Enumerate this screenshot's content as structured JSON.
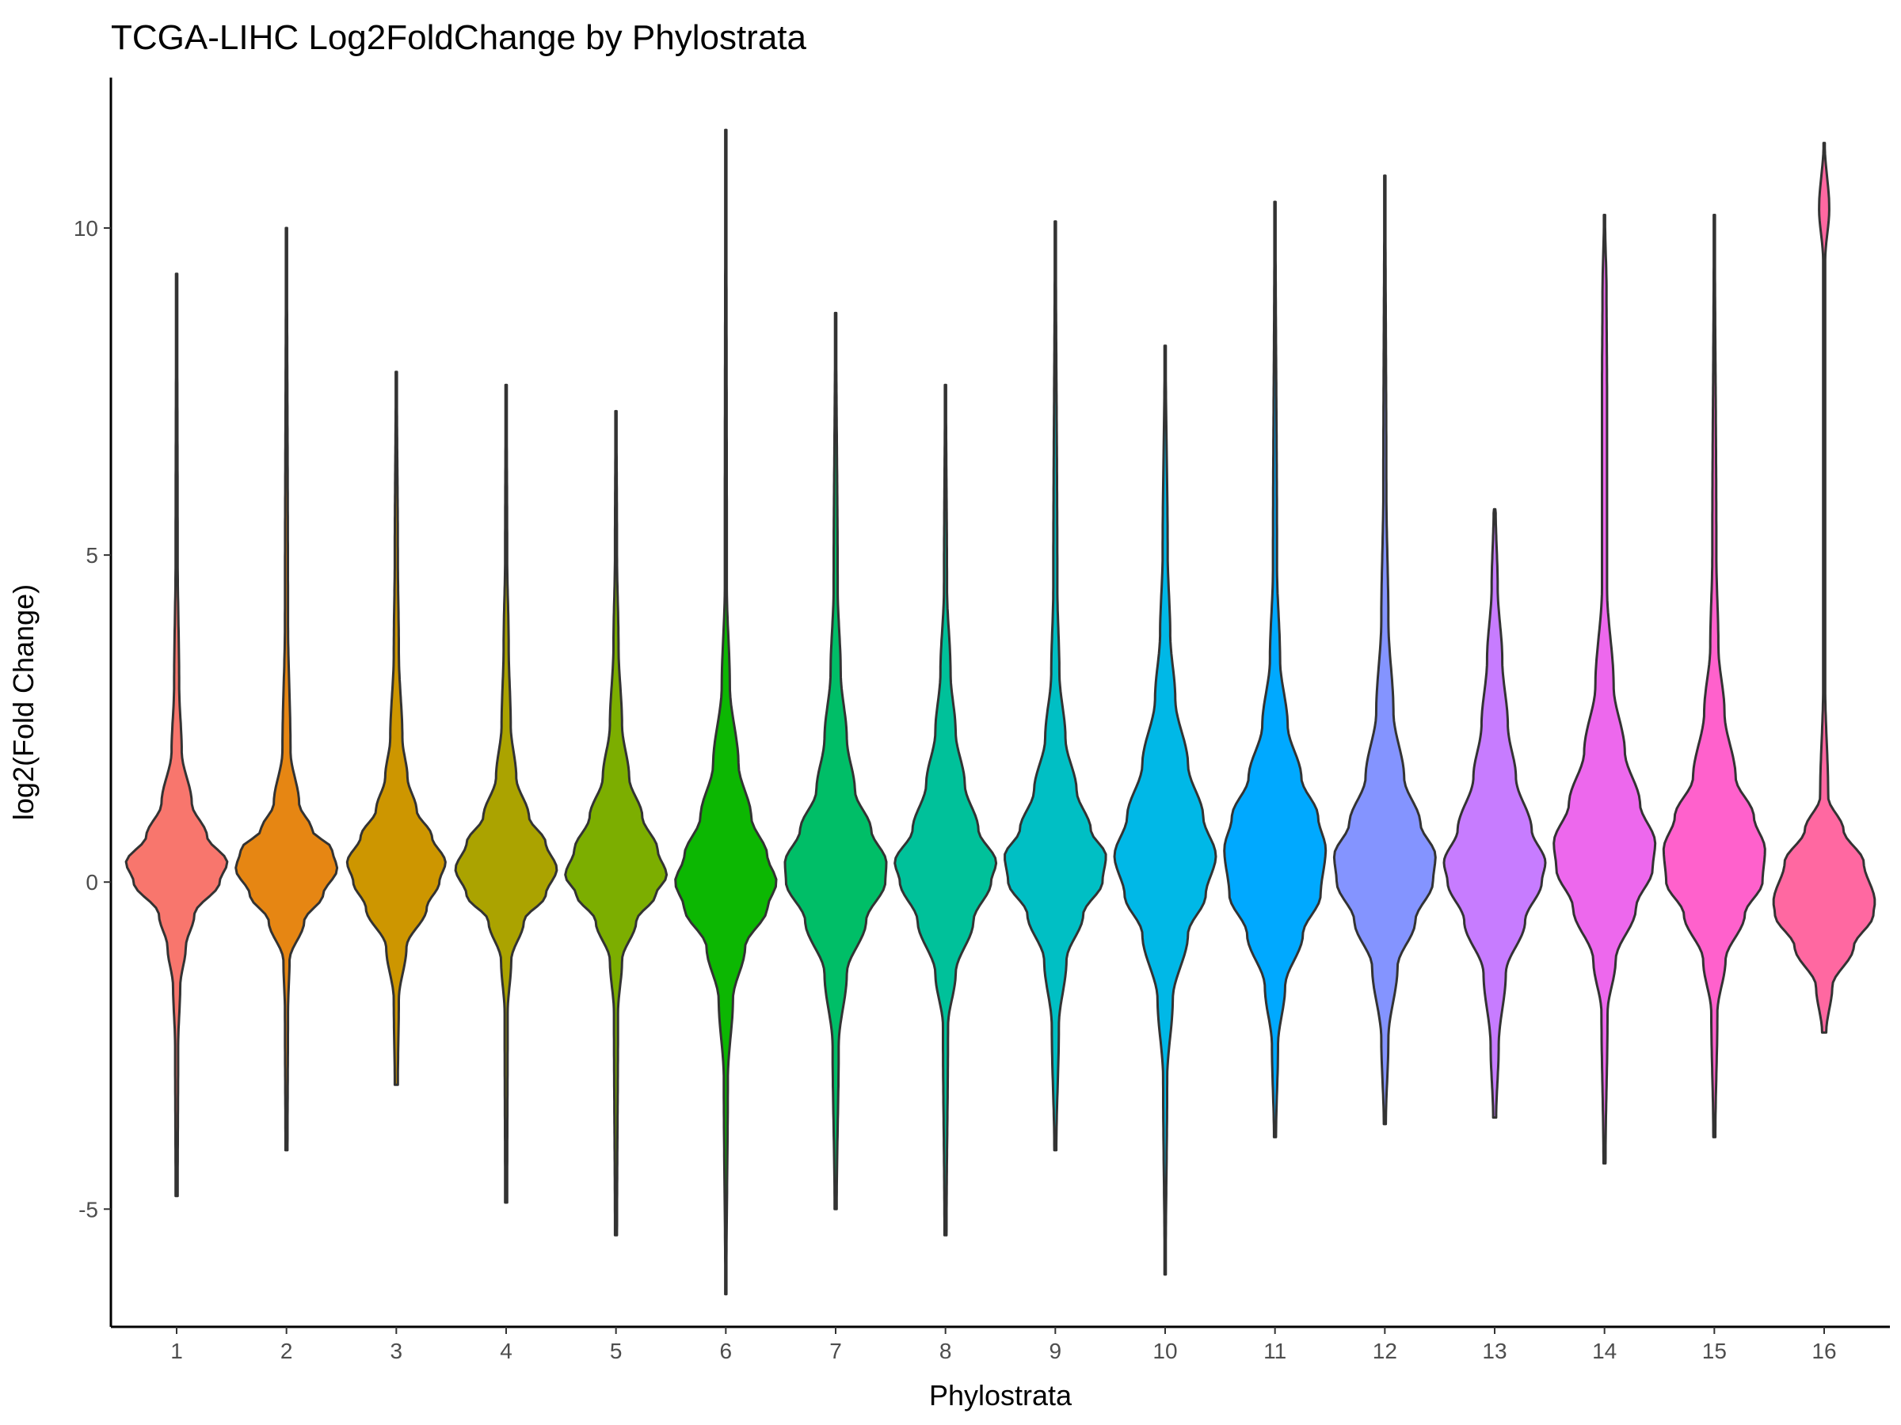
{
  "chart_data": {
    "type": "violin",
    "title": "TCGA-LIHC Log2FoldChange by Phylostrata",
    "xlabel": "Phylostrata",
    "ylabel": "log2(Fold Change)",
    "ylim": [
      -6.8,
      12.3
    ],
    "y_ticks": [
      -5,
      0,
      5,
      10
    ],
    "grid": false,
    "legend": "none",
    "categories": [
      "1",
      "2",
      "3",
      "4",
      "5",
      "6",
      "7",
      "8",
      "9",
      "10",
      "11",
      "12",
      "13",
      "14",
      "15",
      "16"
    ],
    "series": [
      {
        "category": "1",
        "color": "#F8766D",
        "min": -4.8,
        "max": 9.3,
        "profile": [
          [
            -4.8,
            0.02
          ],
          [
            -2.5,
            0.03
          ],
          [
            -1.6,
            0.07
          ],
          [
            -1.0,
            0.18
          ],
          [
            -0.5,
            0.35
          ],
          [
            0.0,
            0.85
          ],
          [
            0.3,
            1.0
          ],
          [
            0.7,
            0.6
          ],
          [
            1.2,
            0.3
          ],
          [
            2.0,
            0.1
          ],
          [
            3.0,
            0.05
          ],
          [
            5.0,
            0.02
          ],
          [
            9.3,
            0.01
          ]
        ]
      },
      {
        "category": "2",
        "color": "#E68613",
        "min": -4.1,
        "max": 10.0,
        "profile": [
          [
            -4.1,
            0.02
          ],
          [
            -2.0,
            0.03
          ],
          [
            -1.2,
            0.06
          ],
          [
            -0.6,
            0.35
          ],
          [
            -0.2,
            0.72
          ],
          [
            0.2,
            1.0
          ],
          [
            0.5,
            0.9
          ],
          [
            0.8,
            0.5
          ],
          [
            1.2,
            0.25
          ],
          [
            2.0,
            0.08
          ],
          [
            4.0,
            0.03
          ],
          [
            10.0,
            0.01
          ]
        ]
      },
      {
        "category": "3",
        "color": "#CD9600",
        "min": -3.1,
        "max": 7.8,
        "profile": [
          [
            -3.1,
            0.03
          ],
          [
            -1.8,
            0.05
          ],
          [
            -1.0,
            0.2
          ],
          [
            -0.4,
            0.6
          ],
          [
            0.0,
            0.85
          ],
          [
            0.3,
            0.97
          ],
          [
            0.7,
            0.7
          ],
          [
            1.1,
            0.4
          ],
          [
            1.6,
            0.22
          ],
          [
            2.2,
            0.12
          ],
          [
            3.5,
            0.05
          ],
          [
            5.0,
            0.03
          ],
          [
            7.8,
            0.01
          ]
        ]
      },
      {
        "category": "4",
        "color": "#ABA300",
        "min": -4.9,
        "max": 7.6,
        "profile": [
          [
            -4.9,
            0.02
          ],
          [
            -2.0,
            0.03
          ],
          [
            -1.2,
            0.1
          ],
          [
            -0.6,
            0.35
          ],
          [
            -0.2,
            0.78
          ],
          [
            0.2,
            1.0
          ],
          [
            0.6,
            0.78
          ],
          [
            1.0,
            0.45
          ],
          [
            1.6,
            0.2
          ],
          [
            2.4,
            0.09
          ],
          [
            3.6,
            0.05
          ],
          [
            5.0,
            0.02
          ],
          [
            7.6,
            0.01
          ]
        ]
      },
      {
        "category": "5",
        "color": "#7CAE00",
        "min": -5.4,
        "max": 7.2,
        "profile": [
          [
            -5.4,
            0.02
          ],
          [
            -2.0,
            0.04
          ],
          [
            -1.2,
            0.12
          ],
          [
            -0.6,
            0.4
          ],
          [
            -0.2,
            0.78
          ],
          [
            0.1,
            1.0
          ],
          [
            0.5,
            0.82
          ],
          [
            1.0,
            0.52
          ],
          [
            1.6,
            0.26
          ],
          [
            2.4,
            0.12
          ],
          [
            3.6,
            0.05
          ],
          [
            5.0,
            0.02
          ],
          [
            7.2,
            0.01
          ]
        ]
      },
      {
        "category": "6",
        "color": "#0CB702",
        "min": -6.3,
        "max": 11.5,
        "profile": [
          [
            -6.3,
            0.01
          ],
          [
            -3.0,
            0.04
          ],
          [
            -1.8,
            0.14
          ],
          [
            -1.0,
            0.38
          ],
          [
            -0.4,
            0.82
          ],
          [
            0.0,
            1.0
          ],
          [
            0.4,
            0.82
          ],
          [
            1.0,
            0.5
          ],
          [
            1.8,
            0.25
          ],
          [
            3.0,
            0.08
          ],
          [
            4.5,
            0.02
          ],
          [
            11.5,
            0.01
          ]
        ]
      },
      {
        "category": "7",
        "color": "#00BE67",
        "min": -5.0,
        "max": 8.7,
        "profile": [
          [
            -5.0,
            0.02
          ],
          [
            -2.5,
            0.06
          ],
          [
            -1.4,
            0.22
          ],
          [
            -0.6,
            0.6
          ],
          [
            0.0,
            0.98
          ],
          [
            0.3,
            1.0
          ],
          [
            0.8,
            0.7
          ],
          [
            1.4,
            0.38
          ],
          [
            2.2,
            0.22
          ],
          [
            3.2,
            0.1
          ],
          [
            4.5,
            0.04
          ],
          [
            8.7,
            0.01
          ]
        ]
      },
      {
        "category": "8",
        "color": "#00C19A",
        "min": -5.4,
        "max": 7.6,
        "profile": [
          [
            -5.4,
            0.02
          ],
          [
            -2.2,
            0.05
          ],
          [
            -1.4,
            0.2
          ],
          [
            -0.6,
            0.55
          ],
          [
            0.0,
            0.9
          ],
          [
            0.3,
            1.0
          ],
          [
            0.8,
            0.65
          ],
          [
            1.5,
            0.38
          ],
          [
            2.3,
            0.2
          ],
          [
            3.2,
            0.1
          ],
          [
            4.5,
            0.03
          ],
          [
            7.6,
            0.01
          ]
        ]
      },
      {
        "category": "9",
        "color": "#00BFC4",
        "min": -4.1,
        "max": 10.1,
        "profile": [
          [
            -4.1,
            0.02
          ],
          [
            -2.2,
            0.07
          ],
          [
            -1.2,
            0.22
          ],
          [
            -0.5,
            0.55
          ],
          [
            0.0,
            0.93
          ],
          [
            0.4,
            1.0
          ],
          [
            0.8,
            0.7
          ],
          [
            1.4,
            0.42
          ],
          [
            2.2,
            0.2
          ],
          [
            3.2,
            0.08
          ],
          [
            4.5,
            0.04
          ],
          [
            10.1,
            0.01
          ]
        ]
      },
      {
        "category": "10",
        "color": "#00B8E7",
        "min": -6.0,
        "max": 8.2,
        "profile": [
          [
            -6.0,
            0.01
          ],
          [
            -3.0,
            0.04
          ],
          [
            -1.8,
            0.15
          ],
          [
            -0.8,
            0.45
          ],
          [
            -0.2,
            0.8
          ],
          [
            0.4,
            1.0
          ],
          [
            1.0,
            0.75
          ],
          [
            1.8,
            0.45
          ],
          [
            2.8,
            0.2
          ],
          [
            3.8,
            0.1
          ],
          [
            5.0,
            0.05
          ],
          [
            8.2,
            0.01
          ]
        ]
      },
      {
        "category": "11",
        "color": "#00A9FF",
        "min": -3.9,
        "max": 10.4,
        "profile": [
          [
            -3.9,
            0.02
          ],
          [
            -2.5,
            0.06
          ],
          [
            -1.6,
            0.2
          ],
          [
            -0.8,
            0.55
          ],
          [
            -0.2,
            0.9
          ],
          [
            0.5,
            1.0
          ],
          [
            1.0,
            0.85
          ],
          [
            1.6,
            0.52
          ],
          [
            2.4,
            0.25
          ],
          [
            3.4,
            0.1
          ],
          [
            4.8,
            0.04
          ],
          [
            10.4,
            0.01
          ]
        ]
      },
      {
        "category": "12",
        "color": "#8494FF",
        "min": -3.7,
        "max": 10.8,
        "profile": [
          [
            -3.7,
            0.02
          ],
          [
            -2.4,
            0.07
          ],
          [
            -1.3,
            0.25
          ],
          [
            -0.6,
            0.6
          ],
          [
            0.0,
            0.95
          ],
          [
            0.4,
            1.0
          ],
          [
            0.9,
            0.7
          ],
          [
            1.6,
            0.38
          ],
          [
            2.6,
            0.17
          ],
          [
            4.0,
            0.07
          ],
          [
            6.0,
            0.03
          ],
          [
            10.8,
            0.01
          ]
        ]
      },
      {
        "category": "13",
        "color": "#C77CFF",
        "min": -3.6,
        "max": 5.7,
        "profile": [
          [
            -3.6,
            0.03
          ],
          [
            -2.5,
            0.08
          ],
          [
            -1.4,
            0.22
          ],
          [
            -0.6,
            0.6
          ],
          [
            0.0,
            0.93
          ],
          [
            0.3,
            1.0
          ],
          [
            0.8,
            0.73
          ],
          [
            1.6,
            0.42
          ],
          [
            2.4,
            0.26
          ],
          [
            3.4,
            0.15
          ],
          [
            4.5,
            0.06
          ],
          [
            5.7,
            0.02
          ]
        ]
      },
      {
        "category": "14",
        "color": "#ED68ED",
        "min": -4.3,
        "max": 10.2,
        "profile": [
          [
            -4.3,
            0.02
          ],
          [
            -2.0,
            0.06
          ],
          [
            -1.2,
            0.22
          ],
          [
            -0.4,
            0.62
          ],
          [
            0.2,
            0.95
          ],
          [
            0.6,
            1.0
          ],
          [
            1.2,
            0.7
          ],
          [
            2.0,
            0.4
          ],
          [
            3.0,
            0.18
          ],
          [
            4.5,
            0.05
          ],
          [
            7.5,
            0.05
          ],
          [
            9.0,
            0.04
          ],
          [
            10.2,
            0.01
          ]
        ]
      },
      {
        "category": "15",
        "color": "#FF61CC",
        "min": -3.9,
        "max": 10.2,
        "profile": [
          [
            -3.9,
            0.02
          ],
          [
            -2.0,
            0.06
          ],
          [
            -1.2,
            0.22
          ],
          [
            -0.5,
            0.6
          ],
          [
            0.0,
            0.95
          ],
          [
            0.5,
            1.0
          ],
          [
            1.0,
            0.78
          ],
          [
            1.6,
            0.42
          ],
          [
            2.6,
            0.2
          ],
          [
            3.6,
            0.08
          ],
          [
            5.0,
            0.04
          ],
          [
            10.2,
            0.01
          ]
        ]
      },
      {
        "category": "16",
        "color": "#FF68A1",
        "min": -2.3,
        "max": 11.3,
        "profile": [
          [
            -2.3,
            0.04
          ],
          [
            -1.6,
            0.16
          ],
          [
            -1.0,
            0.58
          ],
          [
            -0.5,
            0.97
          ],
          [
            -0.3,
            1.0
          ],
          [
            0.3,
            0.78
          ],
          [
            0.8,
            0.38
          ],
          [
            1.3,
            0.08
          ],
          [
            3.0,
            0.02
          ],
          [
            9.5,
            0.02
          ],
          [
            10.3,
            0.1
          ],
          [
            11.3,
            0.01
          ]
        ]
      }
    ]
  }
}
